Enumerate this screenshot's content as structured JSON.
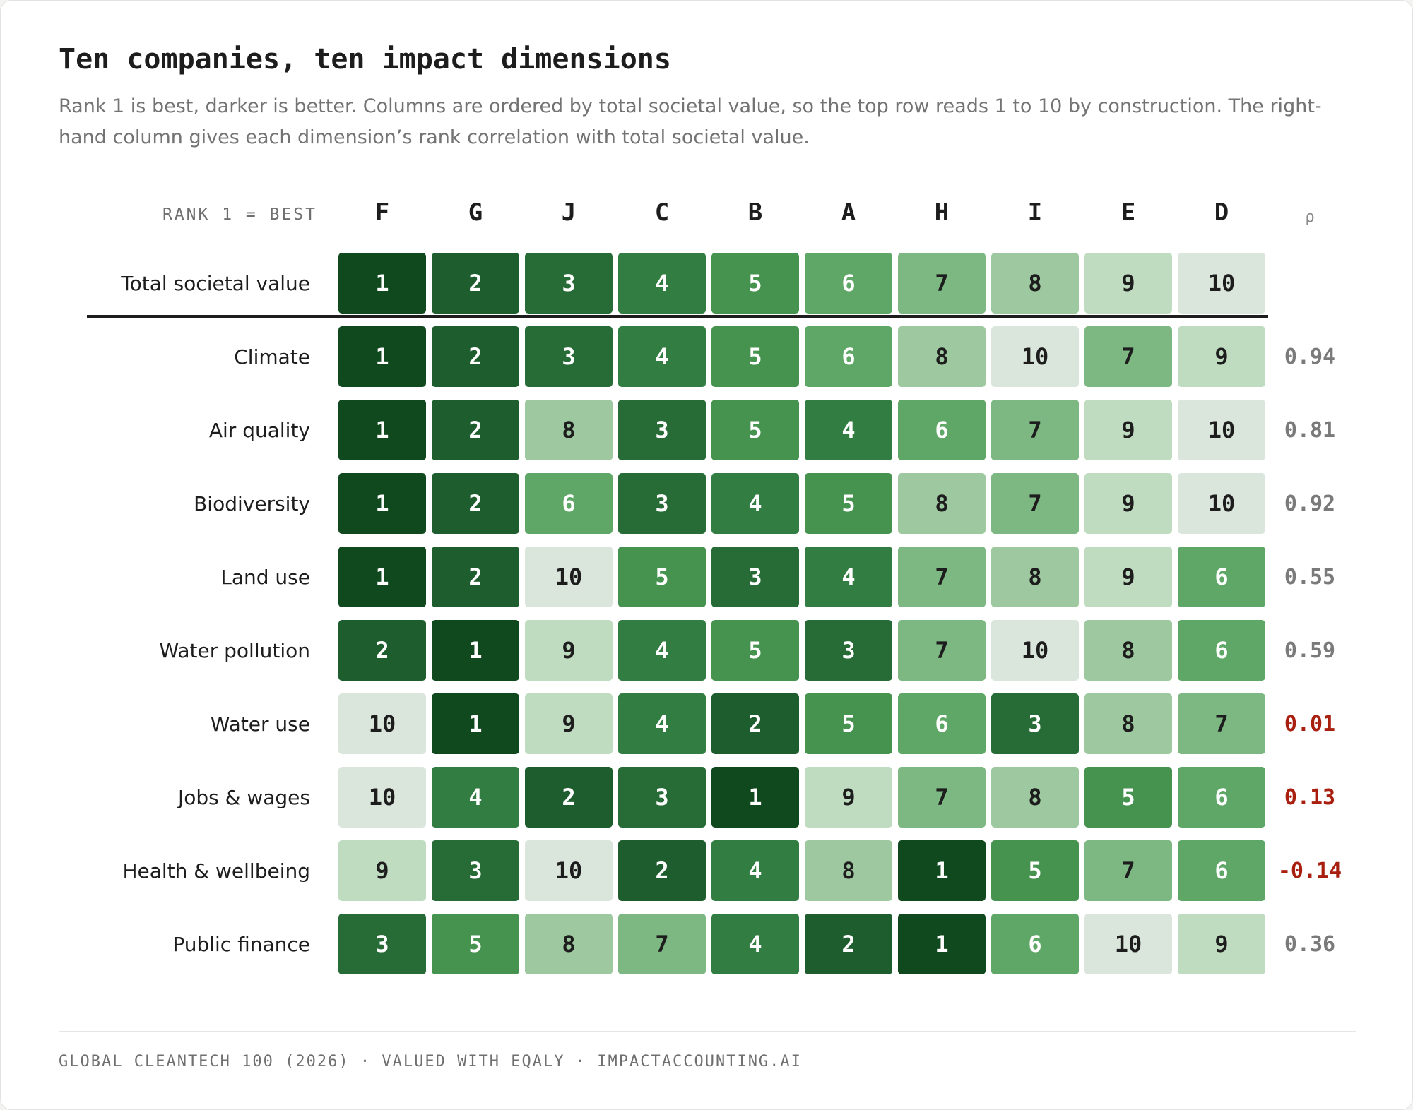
{
  "title": "Ten companies, ten impact dimensions",
  "subtitle": "Rank 1 is best, darker is better. Columns are ordered by total societal value, so the top row reads 1 to 10 by construction. The right-hand column gives each dimension’s rank correlation with total societal value.",
  "footer": "GLOBAL CLEANTECH 100 (2026) · VALUED WITH EQALY · IMPACTACCOUNTING.AI",
  "chart_data": {
    "type": "heatmap",
    "legend_label": "RANK 1 = BEST",
    "correlation_header": "ρ",
    "columns": [
      "F",
      "G",
      "J",
      "C",
      "B",
      "A",
      "H",
      "I",
      "E",
      "D"
    ],
    "rows": [
      {
        "label": "Total societal value",
        "ranks": [
          1,
          2,
          3,
          4,
          5,
          6,
          7,
          8,
          9,
          10
        ],
        "rho": null
      },
      {
        "label": "Climate",
        "ranks": [
          1,
          2,
          3,
          4,
          5,
          6,
          8,
          10,
          7,
          9
        ],
        "rho": "0.94"
      },
      {
        "label": "Air quality",
        "ranks": [
          1,
          2,
          8,
          3,
          5,
          4,
          6,
          7,
          9,
          10
        ],
        "rho": "0.81"
      },
      {
        "label": "Biodiversity",
        "ranks": [
          1,
          2,
          6,
          3,
          4,
          5,
          8,
          7,
          9,
          10
        ],
        "rho": "0.92"
      },
      {
        "label": "Land use",
        "ranks": [
          1,
          2,
          10,
          5,
          3,
          4,
          7,
          8,
          9,
          6
        ],
        "rho": "0.55"
      },
      {
        "label": "Water pollution",
        "ranks": [
          2,
          1,
          9,
          4,
          5,
          3,
          7,
          10,
          8,
          6
        ],
        "rho": "0.59"
      },
      {
        "label": "Water use",
        "ranks": [
          10,
          1,
          9,
          4,
          2,
          5,
          6,
          3,
          8,
          7
        ],
        "rho": "0.01"
      },
      {
        "label": "Jobs & wages",
        "ranks": [
          10,
          4,
          2,
          3,
          1,
          9,
          7,
          8,
          5,
          6
        ],
        "rho": "0.13"
      },
      {
        "label": "Health & wellbeing",
        "ranks": [
          9,
          3,
          10,
          2,
          4,
          8,
          1,
          5,
          7,
          6
        ],
        "rho": "-0.14"
      },
      {
        "label": "Public finance",
        "ranks": [
          3,
          5,
          8,
          7,
          4,
          2,
          1,
          6,
          10,
          9
        ],
        "rho": "0.36"
      }
    ],
    "rank_colors": [
      "#11491f",
      "#1e5e2e",
      "#276b36",
      "#327d41",
      "#46924f",
      "#5ea766",
      "#7db882",
      "#9ec9a0",
      "#bfdcc1",
      "#dae6dc"
    ],
    "text_colors": {
      "dark_cells": "#ffffff",
      "light_cells": "#1d1d1d"
    },
    "rho_colors": {
      "weak": "#a81f0f",
      "default": "#7a7a7a"
    }
  }
}
